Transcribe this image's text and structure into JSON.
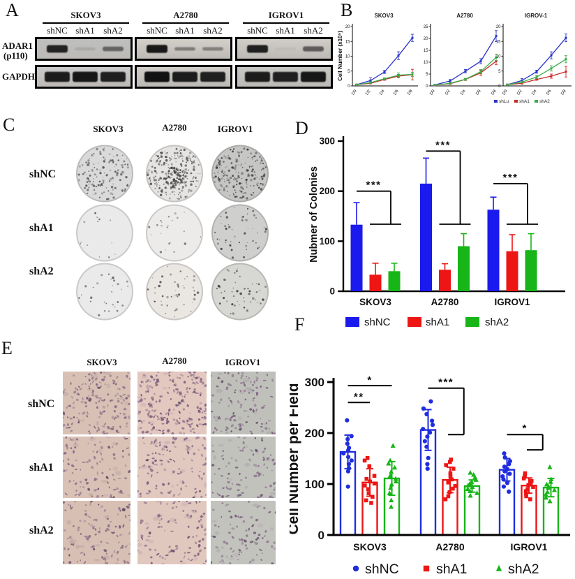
{
  "figure": {
    "background": "#ffffff"
  },
  "panel_a": {
    "label": "A",
    "cell_lines": [
      "SKOV3",
      "A2780",
      "IGROV1"
    ],
    "lane_labels": [
      "shNC",
      "shA1",
      "shA2"
    ],
    "protein_rows": [
      {
        "name": "ADAR1 (p110)",
        "line1": "ADAR1",
        "line2": "(p110)"
      },
      {
        "name": "GAPDH",
        "line1": "GAPDH",
        "line2": ""
      }
    ],
    "blots": {
      "adar1": [
        {
          "bg": "#bfbfbf",
          "bands": [
            0.85,
            0.05,
            0.32
          ]
        },
        {
          "bg": "#d3d0ca",
          "bands": [
            0.95,
            0.14,
            0.12
          ]
        },
        {
          "bg": "#d0cdc7",
          "bands": [
            0.88,
            0.02,
            0.4
          ]
        }
      ],
      "gapdh": [
        {
          "bg": "#cbcbcb",
          "bands": [
            0.92,
            0.96,
            0.88
          ]
        },
        {
          "bg": "#d0cdc9",
          "bands": [
            1.0,
            0.92,
            0.88
          ]
        },
        {
          "bg": "#c7c7c5",
          "bands": [
            0.92,
            0.88,
            0.96
          ]
        }
      ]
    }
  },
  "panel_b": {
    "label": "B",
    "ylabel": "Cell Number (x10⁵)"
  },
  "panel_c": {
    "label": "C",
    "col_headers": [
      "SKOV3",
      "A2780",
      "IGROV1"
    ],
    "row_labels": [
      "shNC",
      "shA1",
      "shA2"
    ],
    "dishes": [
      [
        {
          "bg": "#dadada",
          "colonies": 130
        },
        {
          "bg": "#e6e4e2",
          "colonies": 220
        },
        {
          "bg": "#c6c6c4",
          "colonies": 200
        }
      ],
      [
        {
          "bg": "#eaeaea",
          "colonies": 14
        },
        {
          "bg": "#edebe9",
          "colonies": 22
        },
        {
          "bg": "#cfcfcd",
          "colonies": 48
        }
      ],
      [
        {
          "bg": "#eaeaea",
          "colonies": 28
        },
        {
          "bg": "#eae7e3",
          "colonies": 44
        },
        {
          "bg": "#d7d7d3",
          "colonies": 52
        }
      ]
    ]
  },
  "panel_d": {
    "label": "D"
  },
  "panel_e": {
    "label": "E",
    "col_headers": [
      "SKOV3",
      "A2780",
      "IGROV1"
    ],
    "row_labels": [
      "shNC",
      "shA1",
      "shA2"
    ],
    "images": [
      [
        {
          "bg": "#d8c1b4",
          "cells": 155
        },
        {
          "bg": "#e3c8bf",
          "cells": 205
        },
        {
          "bg": "#bfc0ba",
          "cells": 110
        }
      ],
      [
        {
          "bg": "#d9c2b5",
          "cells": 95
        },
        {
          "bg": "#e2c9c0",
          "cells": 110
        },
        {
          "bg": "#c1c2bc",
          "cells": 85
        }
      ],
      [
        {
          "bg": "#d7c0b3",
          "cells": 105
        },
        {
          "bg": "#e1c8be",
          "cells": 95
        },
        {
          "bg": "#c2c3bd",
          "cells": 80
        }
      ]
    ]
  },
  "panel_f": {
    "label": "F"
  },
  "chart_data": [
    {
      "panel": "B",
      "type": "line",
      "title": "SKOV3",
      "x": [
        "D0",
        "D2",
        "D4",
        "D6",
        "D8"
      ],
      "ylim": [
        0,
        20
      ],
      "yticks": [
        0,
        5,
        10,
        15,
        20
      ],
      "series": [
        {
          "name": "shLu",
          "color": "#2b35c9",
          "values": [
            0.4,
            1.8,
            4.7,
            10.2,
            16.2
          ],
          "err": [
            0.2,
            0.9,
            0.5,
            1.3,
            1.2
          ]
        },
        {
          "name": "shA1",
          "color": "#cb2a27",
          "values": [
            0.4,
            0.9,
            2.2,
            3.3,
            3.8
          ],
          "err": [
            0.1,
            0.2,
            0.3,
            0.6,
            1.8
          ]
        },
        {
          "name": "shA2",
          "color": "#3cad4a",
          "values": [
            0.4,
            1.1,
            2.4,
            3.6,
            3.9
          ],
          "err": [
            0.1,
            0.3,
            0.3,
            0.8,
            0.7
          ]
        }
      ]
    },
    {
      "panel": "B",
      "type": "line",
      "title": "A2780",
      "x": [
        "D0",
        "D2",
        "D4",
        "D6",
        "D8"
      ],
      "ylim": [
        0,
        25
      ],
      "yticks": [
        0,
        5,
        10,
        15,
        20,
        25
      ],
      "series": [
        {
          "name": "shLu",
          "color": "#2b35c9",
          "values": [
            0.4,
            2.1,
            6.2,
            10.4,
            21.0
          ],
          "err": [
            0.1,
            0.6,
            0.7,
            1.1,
            2.3
          ]
        },
        {
          "name": "shA1",
          "color": "#cb2a27",
          "values": [
            0.4,
            0.9,
            2.7,
            5.5,
            10.4
          ],
          "err": [
            0.1,
            0.3,
            0.4,
            1.1,
            1.5
          ]
        },
        {
          "name": "shA2",
          "color": "#3cad4a",
          "values": [
            0.4,
            1.1,
            2.8,
            6.0,
            12.0
          ],
          "err": [
            0.1,
            0.3,
            0.4,
            0.9,
            1.3
          ]
        }
      ]
    },
    {
      "panel": "B",
      "type": "line",
      "title": "IGROV-1",
      "x": [
        "D0",
        "D2",
        "D4",
        "D6",
        "D8"
      ],
      "ylim": [
        0,
        20
      ],
      "yticks": [
        0,
        5,
        10,
        15,
        20
      ],
      "series": [
        {
          "name": "shLu",
          "color": "#2b35c9",
          "values": [
            0.4,
            1.8,
            4.8,
            10.3,
            16.2
          ],
          "err": [
            0.1,
            0.7,
            0.5,
            1.2,
            1.3
          ]
        },
        {
          "name": "shA1",
          "color": "#cb2a27",
          "values": [
            0.4,
            0.9,
            2.2,
            3.3,
            4.8
          ],
          "err": [
            0.1,
            0.3,
            0.3,
            0.7,
            1.8
          ]
        },
        {
          "name": "shA2",
          "color": "#3cad4a",
          "values": [
            0.4,
            1.3,
            3.0,
            5.9,
            9.0
          ],
          "err": [
            0.1,
            0.3,
            0.5,
            0.9,
            1.2
          ]
        }
      ]
    },
    {
      "panel": "D",
      "type": "bar",
      "ylabel": "Nubmer of Colonies",
      "categories": [
        "SKOV3",
        "A2780",
        "IGROV1"
      ],
      "ylim": [
        0,
        300
      ],
      "yticks": [
        0,
        100,
        200,
        300
      ],
      "series": [
        {
          "name": "shNC",
          "color": "#1a1aee",
          "values": [
            133,
            215,
            163
          ],
          "err": [
            44,
            51,
            25
          ]
        },
        {
          "name": "shA1",
          "color": "#ee1515",
          "values": [
            33,
            43,
            80
          ],
          "err": [
            23,
            12,
            33
          ]
        },
        {
          "name": "shA2",
          "color": "#17b517",
          "values": [
            40,
            90,
            82
          ],
          "err": [
            16,
            25,
            33
          ]
        }
      ],
      "sig": [
        {
          "type": "step",
          "group": 0,
          "label": "***",
          "top": 200,
          "bottom": 134
        },
        {
          "type": "step",
          "group": 1,
          "label": "***",
          "top": 280,
          "bottom": 134
        },
        {
          "type": "step",
          "group": 2,
          "label": "***",
          "top": 215,
          "bottom": 134
        }
      ]
    },
    {
      "panel": "F",
      "type": "scatter-bar",
      "ylabel": "Cell Number per Field",
      "categories": [
        "SKOV3",
        "A2780",
        "IGROV1"
      ],
      "ylim": [
        0,
        300
      ],
      "yticks": [
        0,
        100,
        200,
        300
      ],
      "series": [
        {
          "name": "shNC",
          "color": "#1f2dde",
          "marker": "circle",
          "means": [
            163,
            206,
            128
          ],
          "sd": [
            33,
            40,
            22
          ],
          "points": [
            [
              95,
              125,
              131,
              139,
              146,
              153,
              160,
              166,
              171,
              179,
              188,
              194,
              225
            ],
            [
              130,
              139,
              151,
              173,
              184,
              193,
              201,
              208,
              216,
              224,
              237,
              248,
              262
            ],
            [
              85,
              95,
              102,
              109,
              115,
              120,
              125,
              129,
              134,
              139,
              145,
              152,
              160
            ]
          ]
        },
        {
          "name": "shA1",
          "color": "#ee1515",
          "marker": "square",
          "means": [
            103,
            108,
            97
          ],
          "sd": [
            27,
            25,
            15
          ],
          "points": [
            [
              63,
              68,
              75,
              82,
              90,
              97,
              101,
              105,
              110,
              116,
              135,
              146,
              151
            ],
            [
              70,
              76,
              84,
              91,
              96,
              103,
              109,
              114,
              121,
              130,
              137,
              143,
              148
            ],
            [
              70,
              76,
              81,
              86,
              90,
              94,
              98,
              102,
              106,
              111,
              116,
              121
            ]
          ]
        },
        {
          "name": "shA2",
          "color": "#17b517",
          "marker": "triangle",
          "means": [
            111,
            96,
            93
          ],
          "sd": [
            33,
            12,
            18
          ],
          "points": [
            [
              55,
              68,
              82,
              92,
              99,
              105,
              110,
              116,
              124,
              132,
              140,
              146,
              175
            ],
            [
              77,
              82,
              86,
              90,
              94,
              97,
              100,
              104,
              108,
              113,
              118,
              122
            ],
            [
              66,
              73,
              79,
              84,
              88,
              92,
              95,
              99,
              104,
              109,
              133
            ]
          ]
        }
      ],
      "sig": [
        {
          "type": "line",
          "group": 0,
          "a": 0,
          "b": 1,
          "label": "**",
          "y": 260
        },
        {
          "type": "line",
          "group": 0,
          "a": 0,
          "b": 2,
          "label": "*",
          "y": 293
        },
        {
          "type": "step",
          "group": 1,
          "label": "***",
          "top": 288,
          "bottom": 197
        },
        {
          "type": "step",
          "group": 2,
          "label": "*",
          "top": 197,
          "bottom": 167
        }
      ]
    }
  ]
}
